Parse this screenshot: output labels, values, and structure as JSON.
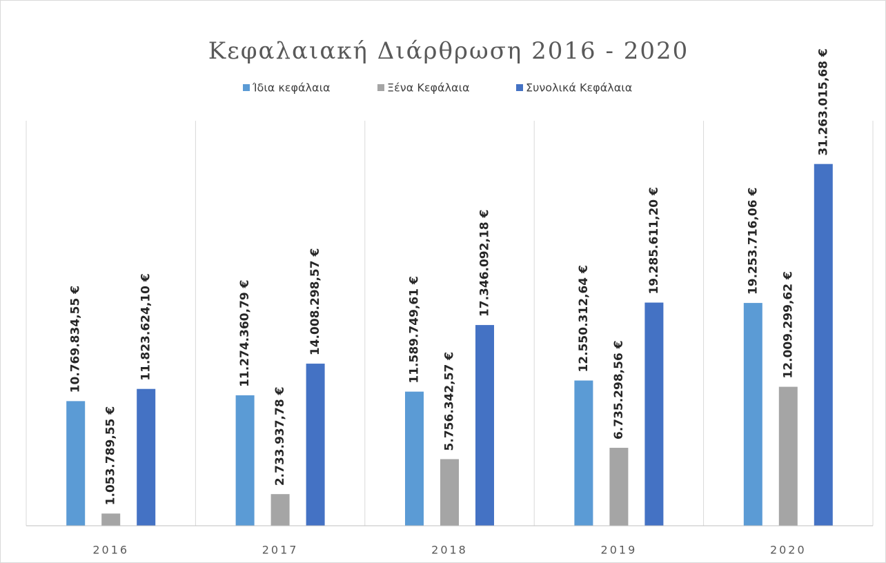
{
  "chart_data": {
    "type": "bar",
    "title": "Κεφαλαιακή Διάρθρωση 2016 - 2020",
    "categories": [
      "2016",
      "2017",
      "2018",
      "2019",
      "2020"
    ],
    "ylim": [
      0,
      35000000
    ],
    "series": [
      {
        "name": "Ίδια κεφάλαια",
        "color": "#5b9bd5",
        "values": [
          10769834.55,
          11274360.79,
          11589749.61,
          12550312.64,
          19253716.06
        ],
        "value_labels": [
          "10.769.834,55 €",
          "11.274.360,79 €",
          "11.589.749,61 €",
          "12.550.312,64 €",
          "19.253.716,06 €"
        ]
      },
      {
        "name": "Ξένα Κεφάλαια",
        "color": "#a5a5a5",
        "values": [
          1053789.55,
          2733937.78,
          5756342.57,
          6735298.56,
          12009299.62
        ],
        "value_labels": [
          "1.053.789,55 €",
          "2.733.937,78 €",
          "5.756.342,57 €",
          "6.735.298,56 €",
          "12.009.299,62 €"
        ]
      },
      {
        "name": "Συνολικά Κεφάλαια",
        "color": "#4472c4",
        "values": [
          11823624.1,
          14008298.57,
          17346092.18,
          19285611.2,
          31263015.68
        ],
        "value_labels": [
          "11.823.624,10 €",
          "14.008.298,57 €",
          "17.346.092,18 €",
          "19.285.611,20 €",
          "31.263.015,68 €"
        ]
      }
    ]
  }
}
